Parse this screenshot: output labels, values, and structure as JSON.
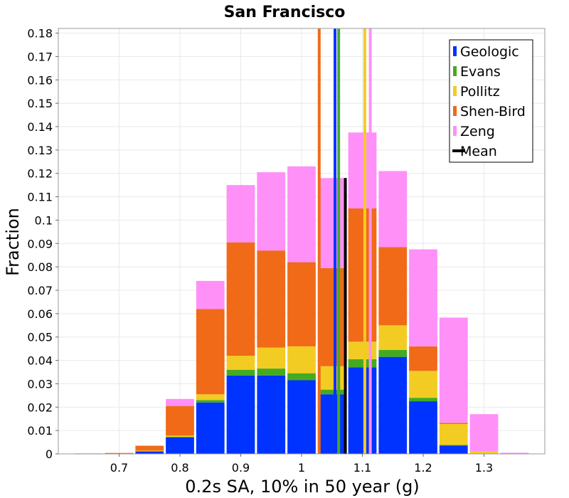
{
  "chart_data": {
    "type": "bar",
    "stacked": true,
    "title": "San Francisco",
    "xlabel": "0.2s SA, 10% in 50 year (g)",
    "ylabel": "Fraction",
    "xlim": [
      0.6,
      1.4
    ],
    "ylim": [
      0,
      0.182
    ],
    "bin_width": 0.05,
    "x_ticks": [
      "0.7",
      "0.8",
      "0.9",
      "1",
      "1.1",
      "1.2",
      "1.3"
    ],
    "x_tick_values": [
      0.7,
      0.8,
      0.9,
      1.0,
      1.1,
      1.2,
      1.3
    ],
    "y_ticks": [
      "0",
      "0.01",
      "0.02",
      "0.03",
      "0.04",
      "0.05",
      "0.06",
      "0.07",
      "0.08",
      "0.09",
      "0.1",
      "0.11",
      "0.12",
      "0.13",
      "0.14",
      "0.15",
      "0.16",
      "0.17",
      "0.18"
    ],
    "y_tick_values": [
      0,
      0.01,
      0.02,
      0.03,
      0.04,
      0.05,
      0.06,
      0.07,
      0.08,
      0.09,
      0.1,
      0.11,
      0.12,
      0.13,
      0.14,
      0.15,
      0.16,
      0.17,
      0.18
    ],
    "grid": true,
    "legend_position": "top-right",
    "bin_centers": [
      0.65,
      0.7,
      0.75,
      0.8,
      0.85,
      0.9,
      0.95,
      1.0,
      1.05,
      1.1,
      1.15,
      1.2,
      1.25,
      1.3,
      1.35,
      1.4
    ],
    "series": [
      {
        "name": "Geologic",
        "color": "#0033ff",
        "values": [
          0,
          0,
          0.001,
          0.007,
          0.022,
          0.0335,
          0.0335,
          0.0315,
          0.0255,
          0.037,
          0.0415,
          0.0225,
          0.0035,
          0,
          0,
          0
        ]
      },
      {
        "name": "Evans",
        "color": "#44aa22",
        "values": [
          0,
          0,
          0.0002,
          0.0003,
          0.001,
          0.0025,
          0.003,
          0.003,
          0.002,
          0.0035,
          0.003,
          0.0015,
          0.0003,
          0,
          0,
          0
        ]
      },
      {
        "name": "Pollitz",
        "color": "#f2cc22",
        "values": [
          0,
          0,
          0.0002,
          0.0005,
          0.0025,
          0.006,
          0.009,
          0.0115,
          0.01,
          0.0075,
          0.0105,
          0.0115,
          0.009,
          0.001,
          0,
          0
        ]
      },
      {
        "name": "Shen-Bird",
        "color": "#f06a18",
        "values": [
          0.0002,
          0.0004,
          0.0021,
          0.0127,
          0.0365,
          0.0485,
          0.0415,
          0.036,
          0.042,
          0.057,
          0.0335,
          0.0105,
          0.0005,
          0,
          0,
          0
        ]
      },
      {
        "name": "Zeng",
        "color": "#ff90f8",
        "values": [
          0,
          0,
          0,
          0.003,
          0.012,
          0.0245,
          0.0335,
          0.041,
          0.0385,
          0.0325,
          0.0325,
          0.0415,
          0.045,
          0.016,
          0.0005,
          0
        ]
      }
    ],
    "vertical_lines": [
      {
        "series": "Shen-Bird",
        "x": 1.029,
        "color": "#f06a18"
      },
      {
        "series": "Geologic",
        "x": 1.055,
        "color": "#0033ff"
      },
      {
        "series": "Evans",
        "x": 1.061,
        "color": "#44aa22"
      },
      {
        "series": "Pollitz",
        "x": 1.104,
        "color": "#f2cc22"
      },
      {
        "series": "Zeng",
        "x": 1.113,
        "color": "#ff90f8"
      }
    ],
    "mean": {
      "name": "Mean",
      "x": 1.072,
      "color": "#000000"
    }
  }
}
